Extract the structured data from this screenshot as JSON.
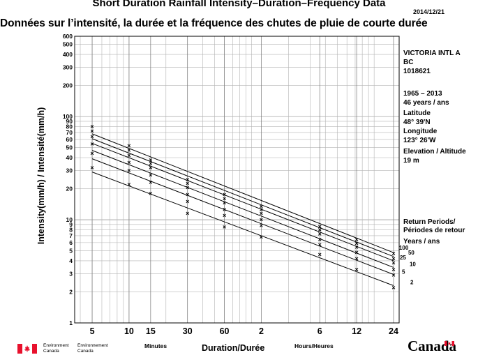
{
  "header": {
    "date": "2014/12/21"
  },
  "station": {
    "name": "VICTORIA INTL A",
    "province": "BC",
    "id": "1018621",
    "period": "1965 – 2013",
    "years": "46 years / ans",
    "lat_label": "Latitude",
    "lat_value": "48° 39'N",
    "lon_label": "Longitude",
    "lon_value": "123° 26'W",
    "elev_label": "Elevation / Altitude",
    "elev_value": "19 m",
    "rp_label1": "Return Periods/",
    "rp_label2": "Périodes de retour",
    "rp_label3": "Years / ans"
  },
  "footer": {
    "minutes_label": "Minutes",
    "hours_label": "Hours/Heures",
    "env_en_1": "Environment",
    "env_en_2": "Canada",
    "env_fr_1": "Environnement",
    "env_fr_2": "Canada",
    "wordmark": "Canada"
  },
  "colors": {
    "flag_red": "#e8112d",
    "ink": "#000000",
    "grid": "#b4b4b4"
  },
  "chart_data": {
    "type": "scatter",
    "title": "Short Duration Rainfall Intensity–Duration–Frequency Data",
    "subtitle": "Données sur l’intensité, la durée et la fréquence des chutes de pluie de courte durée",
    "xlabel": "Duration/Durée",
    "ylabel": "Intensity(mm/h) / Intensité(mm/h)",
    "x_scale": "log",
    "y_scale": "log",
    "ylim": [
      1,
      600
    ],
    "grid": true,
    "x_minutes": [
      5,
      10,
      15,
      30,
      60,
      120,
      360,
      720,
      1440
    ],
    "x_tick_labels": [
      "5",
      "10",
      "15",
      "30",
      "60",
      "2",
      "6",
      "12",
      "24"
    ],
    "y_tick_labels": [
      "1",
      "2",
      "3",
      "4",
      "5",
      "6",
      "7",
      "8",
      "9",
      "10",
      "20",
      "30",
      "40",
      "50",
      "60",
      "70",
      "80",
      "90",
      "100",
      "200",
      "300",
      "400",
      "500",
      "600"
    ],
    "series": [
      {
        "name": "2",
        "points": [
          32,
          22,
          18,
          11.5,
          8.5,
          6.8,
          4.6,
          3.3,
          2.2
        ],
        "fit": [
          29,
          2.3
        ]
      },
      {
        "name": "5",
        "points": [
          44,
          30,
          23,
          15,
          11,
          8.8,
          5.7,
          4.2,
          2.9
        ],
        "fit": [
          39,
          2.95
        ]
      },
      {
        "name": "10",
        "points": [
          54,
          36,
          27,
          17.5,
          12.5,
          10,
          6.4,
          4.8,
          3.3
        ],
        "fit": [
          47,
          3.45
        ]
      },
      {
        "name": "25",
        "points": [
          64,
          42,
          32,
          20.5,
          14.5,
          11.5,
          7.3,
          5.4,
          3.8
        ],
        "fit": [
          55,
          4.0
        ]
      },
      {
        "name": "50",
        "points": [
          72,
          47,
          35,
          22.5,
          16,
          12.5,
          8,
          5.9,
          4.2
        ],
        "fit": [
          61,
          4.4
        ]
      },
      {
        "name": "100",
        "points": [
          80,
          52,
          38,
          24.5,
          17.5,
          13.5,
          8.6,
          6.4,
          4.7
        ],
        "fit": [
          68,
          4.8
        ]
      }
    ]
  }
}
